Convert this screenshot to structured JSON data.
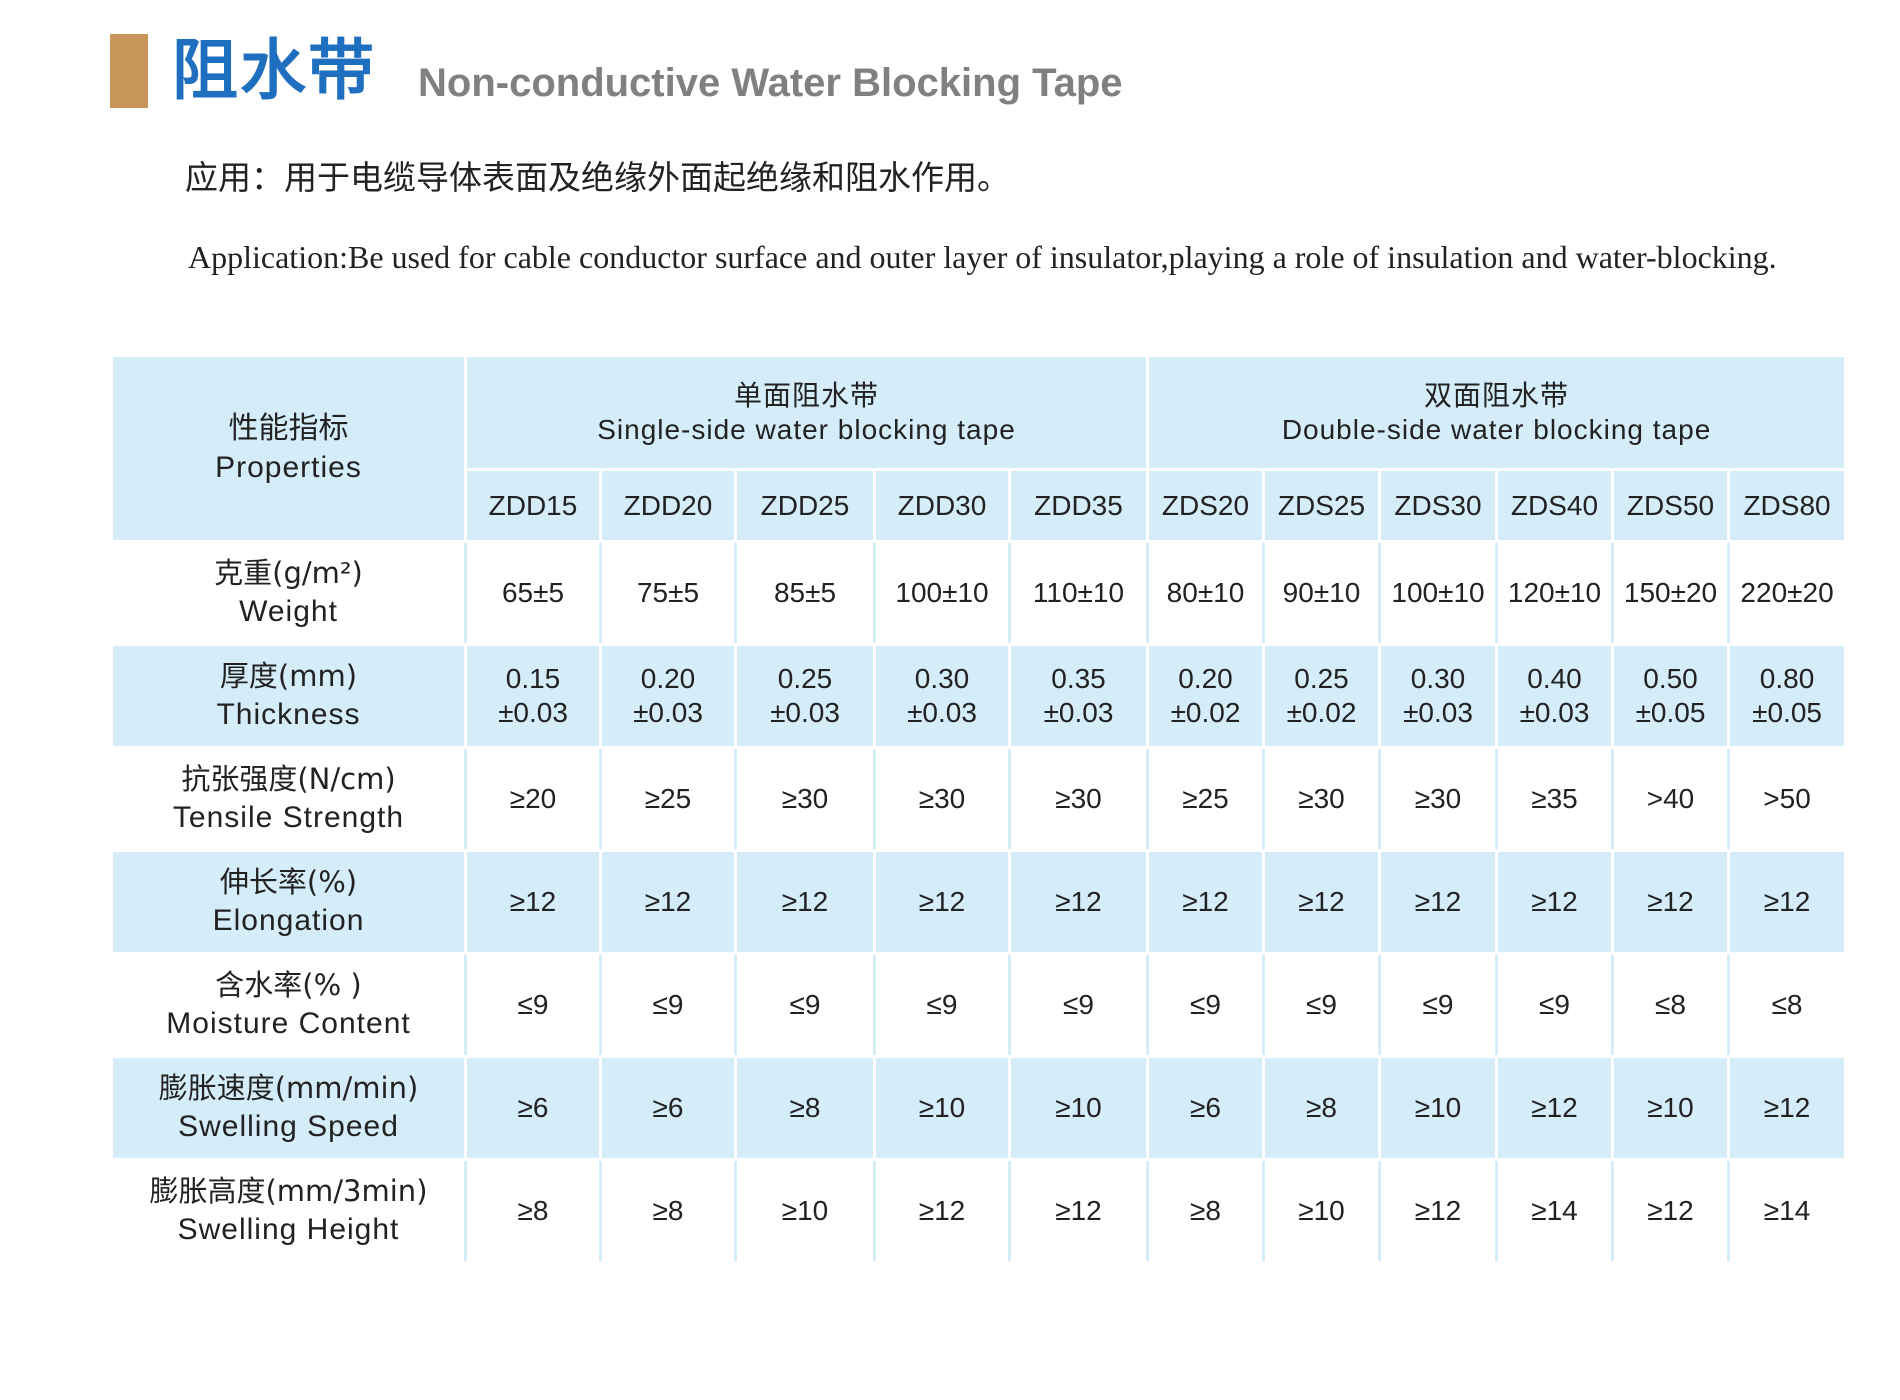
{
  "header": {
    "title_cn": "阻水带",
    "title_en": "Non-conductive Water Blocking Tape"
  },
  "application": {
    "cn": "应用：用于电缆导体表面及绝缘外面起绝缘和阻水作用。",
    "en": "Application:Be used for cable conductor surface and outer layer of insulator,playing a role of insulation and water-blocking."
  },
  "colors": {
    "accent_bar": "#c9965a",
    "title_blue": "#1f6fc0",
    "table_blue": "#d5ecf9"
  },
  "table": {
    "properties_header": {
      "cn": "性能指标",
      "en": "Properties"
    },
    "groups": [
      {
        "cn": "单面阻水带",
        "en": "Single-side water blocking tape",
        "span": 5
      },
      {
        "cn": "双面阻水带",
        "en": "Double-side water blocking tape",
        "span": 6
      }
    ],
    "models": [
      "ZDD15",
      "ZDD20",
      "ZDD25",
      "ZDD30",
      "ZDD35",
      "ZDS20",
      "ZDS25",
      "ZDS30",
      "ZDS40",
      "ZDS50",
      "ZDS80"
    ],
    "rows": [
      {
        "cn": "克重(g/m²)",
        "en": "Weight",
        "values": [
          "65±5",
          "75±5",
          "85±5",
          "100±10",
          "110±10",
          "80±10",
          "90±10",
          "100±10",
          "120±10",
          "150±20",
          "220±20"
        ]
      },
      {
        "cn": "厚度(mm)",
        "en": "Thickness",
        "values": [
          [
            "0.15",
            "±0.03"
          ],
          [
            "0.20",
            "±0.03"
          ],
          [
            "0.25",
            "±0.03"
          ],
          [
            "0.30",
            "±0.03"
          ],
          [
            "0.35",
            "±0.03"
          ],
          [
            "0.20",
            "±0.02"
          ],
          [
            "0.25",
            "±0.02"
          ],
          [
            "0.30",
            "±0.03"
          ],
          [
            "0.40",
            "±0.03"
          ],
          [
            "0.50",
            "±0.05"
          ],
          [
            "0.80",
            "±0.05"
          ]
        ]
      },
      {
        "cn": "抗张强度(N/cm)",
        "en": "Tensile Strength",
        "values": [
          "≥20",
          "≥25",
          "≥30",
          "≥30",
          "≥30",
          "≥25",
          "≥30",
          "≥30",
          "≥35",
          ">40",
          ">50"
        ]
      },
      {
        "cn": "伸长率(%)",
        "en": "Elongation",
        "values": [
          "≥12",
          "≥12",
          "≥12",
          "≥12",
          "≥12",
          "≥12",
          "≥12",
          "≥12",
          "≥12",
          "≥12",
          "≥12"
        ]
      },
      {
        "cn": "含水率(% )",
        "en": "Moisture Content",
        "values": [
          "≤9",
          "≤9",
          "≤9",
          "≤9",
          "≤9",
          "≤9",
          "≤9",
          "≤9",
          "≤9",
          "≤8",
          "≤8"
        ]
      },
      {
        "cn": "膨胀速度(mm/min)",
        "en": "Swelling Speed",
        "values": [
          "≥6",
          "≥6",
          "≥8",
          "≥10",
          "≥10",
          "≥6",
          "≥8",
          "≥10",
          "≥12",
          "≥10",
          "≥12"
        ]
      },
      {
        "cn": "膨胀高度(mm/3min)",
        "en": "Swelling Height",
        "values": [
          "≥8",
          "≥8",
          "≥10",
          "≥12",
          "≥12",
          "≥8",
          "≥10",
          "≥12",
          "≥14",
          "≥12",
          "≥14"
        ]
      }
    ]
  }
}
